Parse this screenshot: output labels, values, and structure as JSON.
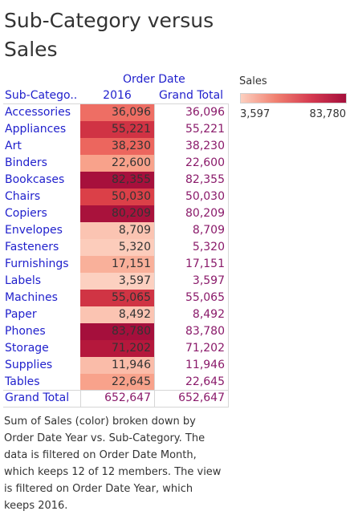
{
  "title": "Sub-Category versus Sales",
  "column_group_label": "Order Date",
  "row_header": "Sub-Catego..",
  "year_header": "2016",
  "total_header": "Grand Total",
  "grand_total_label": "Grand Total",
  "legend": {
    "title": "Sales",
    "min_label": "3,597",
    "max_label": "83,780",
    "color_low": "#fcd0c0",
    "color_high": "#a50f3c"
  },
  "caption": "Sum of Sales (color) broken down by Order Date Year vs. Sub-Category.  The data is filtered on Order Date Month, which keeps 12 of 12 members. The view is filtered on Order Date Year, which keeps 2016.",
  "chart_data": {
    "type": "table",
    "color_measure": "Sum of Sales",
    "color_range": [
      3597,
      83780
    ],
    "columns": [
      "2016",
      "Grand Total"
    ],
    "rows": [
      {
        "label": "Accessories",
        "value": 36096,
        "display": "36,096"
      },
      {
        "label": "Appliances",
        "value": 55221,
        "display": "55,221"
      },
      {
        "label": "Art",
        "value": 38230,
        "display": "38,230"
      },
      {
        "label": "Binders",
        "value": 22600,
        "display": "22,600"
      },
      {
        "label": "Bookcases",
        "value": 82355,
        "display": "82,355"
      },
      {
        "label": "Chairs",
        "value": 50030,
        "display": "50,030"
      },
      {
        "label": "Copiers",
        "value": 80209,
        "display": "80,209"
      },
      {
        "label": "Envelopes",
        "value": 8709,
        "display": "8,709"
      },
      {
        "label": "Fasteners",
        "value": 5320,
        "display": "5,320"
      },
      {
        "label": "Furnishings",
        "value": 17151,
        "display": "17,151"
      },
      {
        "label": "Labels",
        "value": 3597,
        "display": "3,597"
      },
      {
        "label": "Machines",
        "value": 55065,
        "display": "55,065"
      },
      {
        "label": "Paper",
        "value": 8492,
        "display": "8,492"
      },
      {
        "label": "Phones",
        "value": 83780,
        "display": "83,780"
      },
      {
        "label": "Storage",
        "value": 71202,
        "display": "71,202"
      },
      {
        "label": "Supplies",
        "value": 11946,
        "display": "11,946"
      },
      {
        "label": "Tables",
        "value": 22645,
        "display": "22,645"
      }
    ],
    "grand_total": {
      "value": 652647,
      "display": "652,647"
    }
  }
}
